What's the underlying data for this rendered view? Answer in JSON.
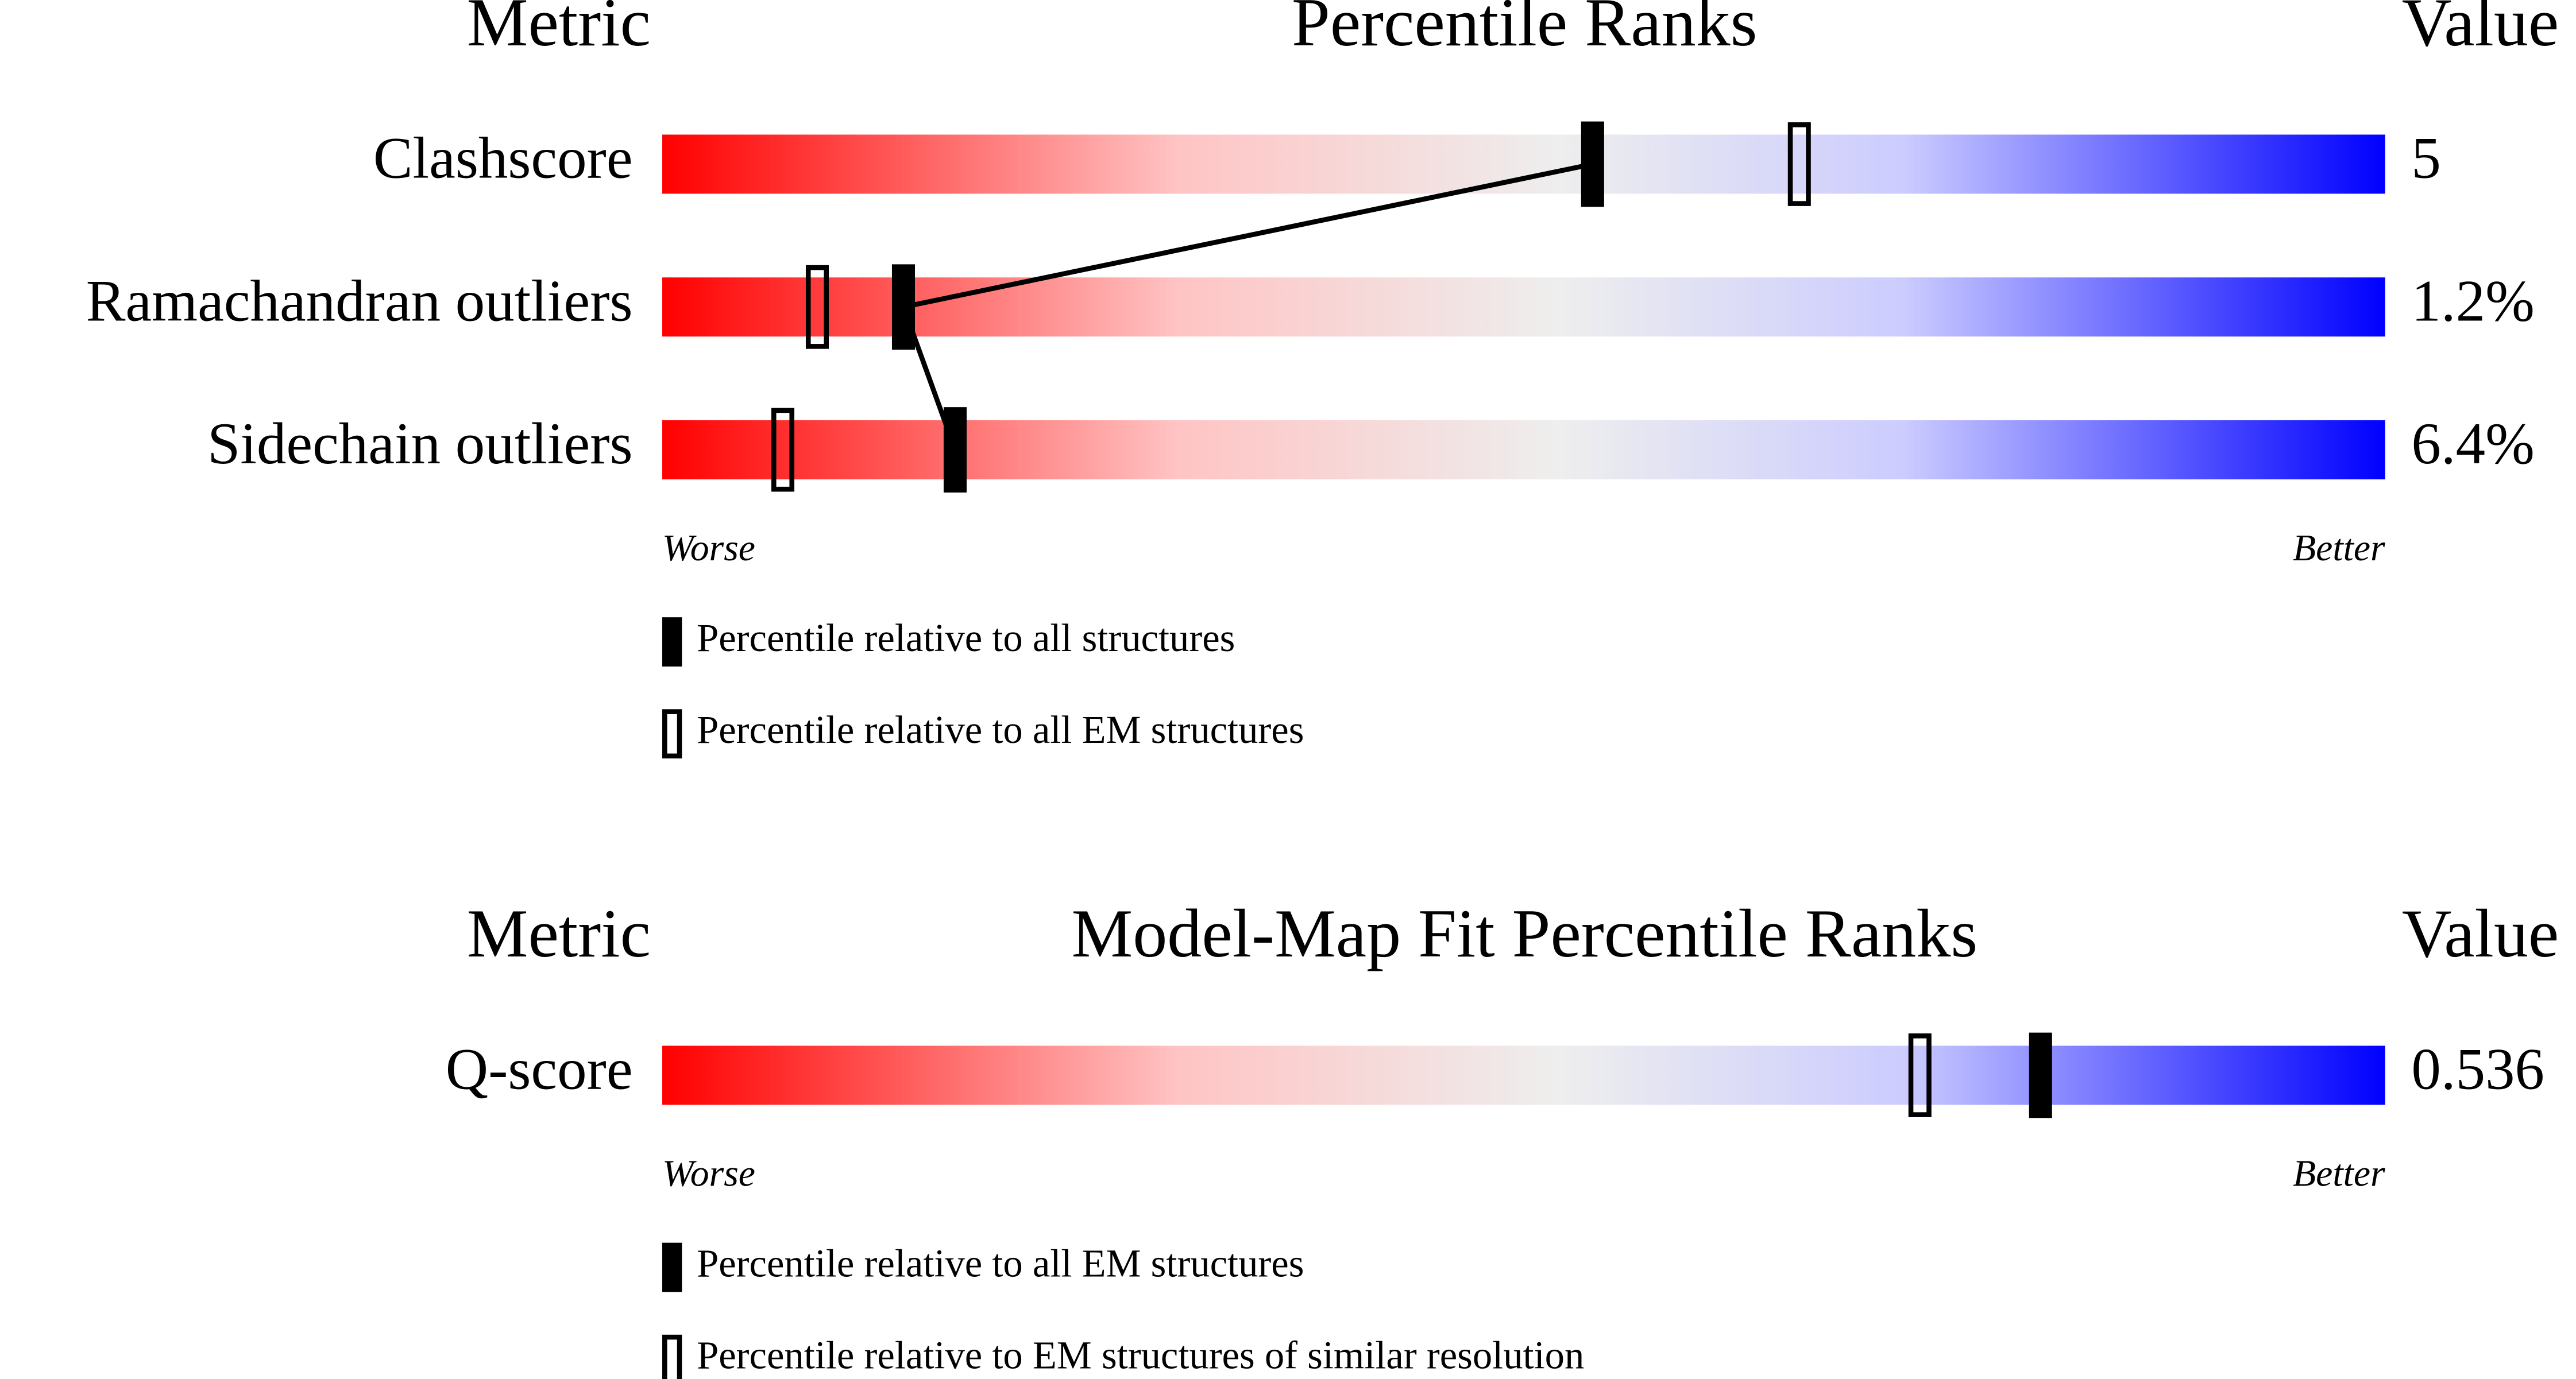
{
  "chart_data": [
    {
      "type": "slider",
      "title": "Percentile Ranks",
      "metric_header": "Metric",
      "value_header": "Value",
      "categories": [
        "Clashscore",
        "Ramachandran outliers",
        "Sidechain outliers"
      ],
      "metric_values": [
        "5",
        "1.2%",
        "6.4%"
      ],
      "xlim": [
        0,
        100
      ],
      "low_label": "Worse",
      "high_label": "Better",
      "series": [
        {
          "name": "Percentile relative to all structures",
          "color": "#000000",
          "filled": true,
          "values": [
            54,
            14,
            17
          ]
        },
        {
          "name": "Percentile relative to all EM structures",
          "color": "#000000",
          "filled": false,
          "values": [
            66,
            9,
            7
          ]
        }
      ]
    },
    {
      "type": "slider",
      "title": "Model-Map Fit Percentile Ranks",
      "metric_header": "Metric",
      "value_header": "Value",
      "categories": [
        "Q-score"
      ],
      "metric_values": [
        "0.536"
      ],
      "xlim": [
        0,
        100
      ],
      "low_label": "Worse",
      "high_label": "Better",
      "series": [
        {
          "name": "Percentile relative to all EM structures",
          "color": "#000000",
          "filled": true,
          "values": [
            80
          ]
        },
        {
          "name": "Percentile relative to EM structures of similar resolution",
          "color": "#000000",
          "filled": false,
          "values": [
            73
          ]
        }
      ]
    }
  ]
}
